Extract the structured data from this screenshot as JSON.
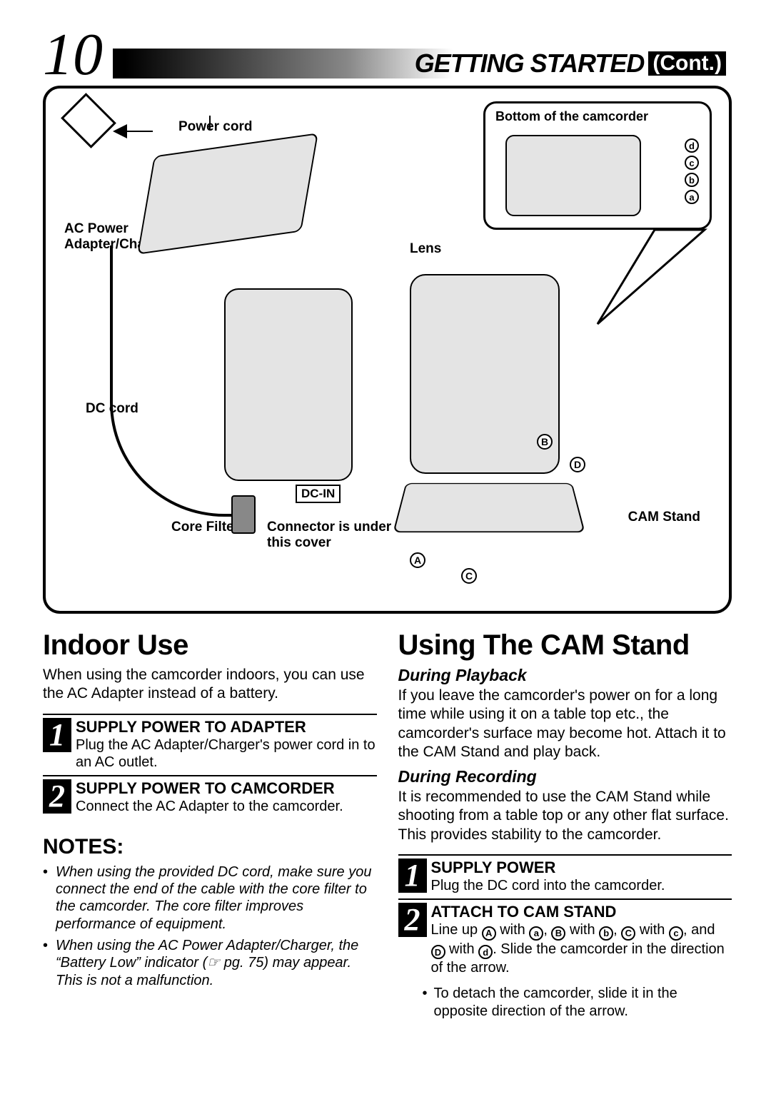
{
  "page_number": "10",
  "header": {
    "main": "GETTING STARTED",
    "cont": "(Cont.)"
  },
  "diagram": {
    "power_cord": "Power cord",
    "ac_adapter": "AC Power\nAdapter/Charger",
    "dc_cord": "DC cord",
    "core_filter": "Core Filter",
    "dc_in": "DC-IN",
    "connector": "Connector is under\nthis cover",
    "bottom": "Bottom of the camcorder",
    "lens": "Lens",
    "cam_stand": "CAM Stand",
    "labels_lower": [
      "a",
      "b",
      "c",
      "d"
    ],
    "labels_upper": [
      "A",
      "B",
      "C",
      "D"
    ]
  },
  "left": {
    "title": "Indoor Use",
    "intro": "When using the camcorder indoors, you can use the AC Adapter instead of a battery.",
    "steps": [
      {
        "n": "1",
        "title": "SUPPLY POWER TO ADAPTER",
        "text": "Plug the AC Adapter/Charger's power cord in to an AC outlet."
      },
      {
        "n": "2",
        "title": "SUPPLY POWER TO CAMCORDER",
        "text": "Connect the AC Adapter to the camcorder."
      }
    ],
    "notes_title": "NOTES:",
    "notes": [
      "When using the provided DC cord, make sure you connect the end of the cable with the core filter to the camcorder. The core filter improves performance of equipment.",
      "When using the AC Power Adapter/Charger, the “Battery Low” indicator (☞ pg. 75) may appear. This is not a malfunction."
    ]
  },
  "right": {
    "title": "Using The CAM Stand",
    "sub1": "During Playback",
    "p1": "If you leave the camcorder's power on for a long time while using it on a table top etc., the camcorder's surface may become hot. Attach it to the CAM Stand and play back.",
    "sub2": "During Recording",
    "p2": "It is recommended to use the CAM Stand while shooting from a table top or any other flat surface. This provides stability to the camcorder.",
    "steps": [
      {
        "n": "1",
        "title": "SUPPLY POWER",
        "text": "Plug the DC cord into the camcorder."
      },
      {
        "n": "2",
        "title": "ATTACH TO CAM STAND",
        "text_pre": "Line up ",
        "text_post": ". Slide the camcorder in the direction of the arrow."
      }
    ],
    "tip": "To detach the camcorder, slide it in the opposite direction of the arrow."
  },
  "colors": {
    "page_bg": "#ffffff",
    "ink": "#000000",
    "sketch_fill": "#e4e4e4"
  }
}
